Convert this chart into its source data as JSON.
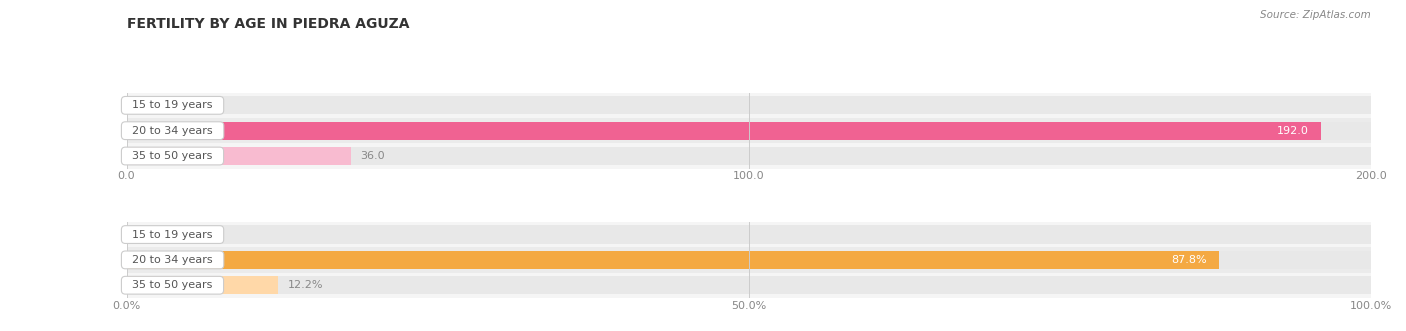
{
  "title": "FERTILITY BY AGE IN PIEDRA AGUZA",
  "source": "Source: ZipAtlas.com",
  "top_section": {
    "categories": [
      "15 to 19 years",
      "20 to 34 years",
      "35 to 50 years"
    ],
    "values": [
      0.0,
      192.0,
      36.0
    ],
    "bar_color": "#f06292",
    "bar_bg_color": "#e8e8e8",
    "bar_light_color": "#f8bbd0",
    "xlim": [
      0,
      200
    ],
    "xticks": [
      0.0,
      100.0,
      200.0
    ],
    "xtick_labels": [
      "0.0",
      "100.0",
      "200.0"
    ]
  },
  "bottom_section": {
    "categories": [
      "15 to 19 years",
      "20 to 34 years",
      "35 to 50 years"
    ],
    "values": [
      0.0,
      87.8,
      12.2
    ],
    "bar_color": "#f4a942",
    "bar_bg_color": "#e8e8e8",
    "bar_light_color": "#ffd8a8",
    "xlim": [
      0,
      100
    ],
    "xticks": [
      0.0,
      50.0,
      100.0
    ],
    "xtick_labels": [
      "0.0%",
      "50.0%",
      "100.0%"
    ]
  },
  "bg_color": "#ffffff",
  "row_bg_white": "#ffffff",
  "row_bg_gray": "#f0f0f0",
  "title_fontsize": 10,
  "tick_fontsize": 8,
  "category_fontsize": 8,
  "value_fontsize": 8,
  "grid_color": "#cccccc",
  "label_box_facecolor": "#ffffff",
  "label_box_edgecolor": "#dddddd",
  "label_text_color": "#555555",
  "value_text_outside_color": "#888888",
  "value_text_inside_color": "#ffffff"
}
